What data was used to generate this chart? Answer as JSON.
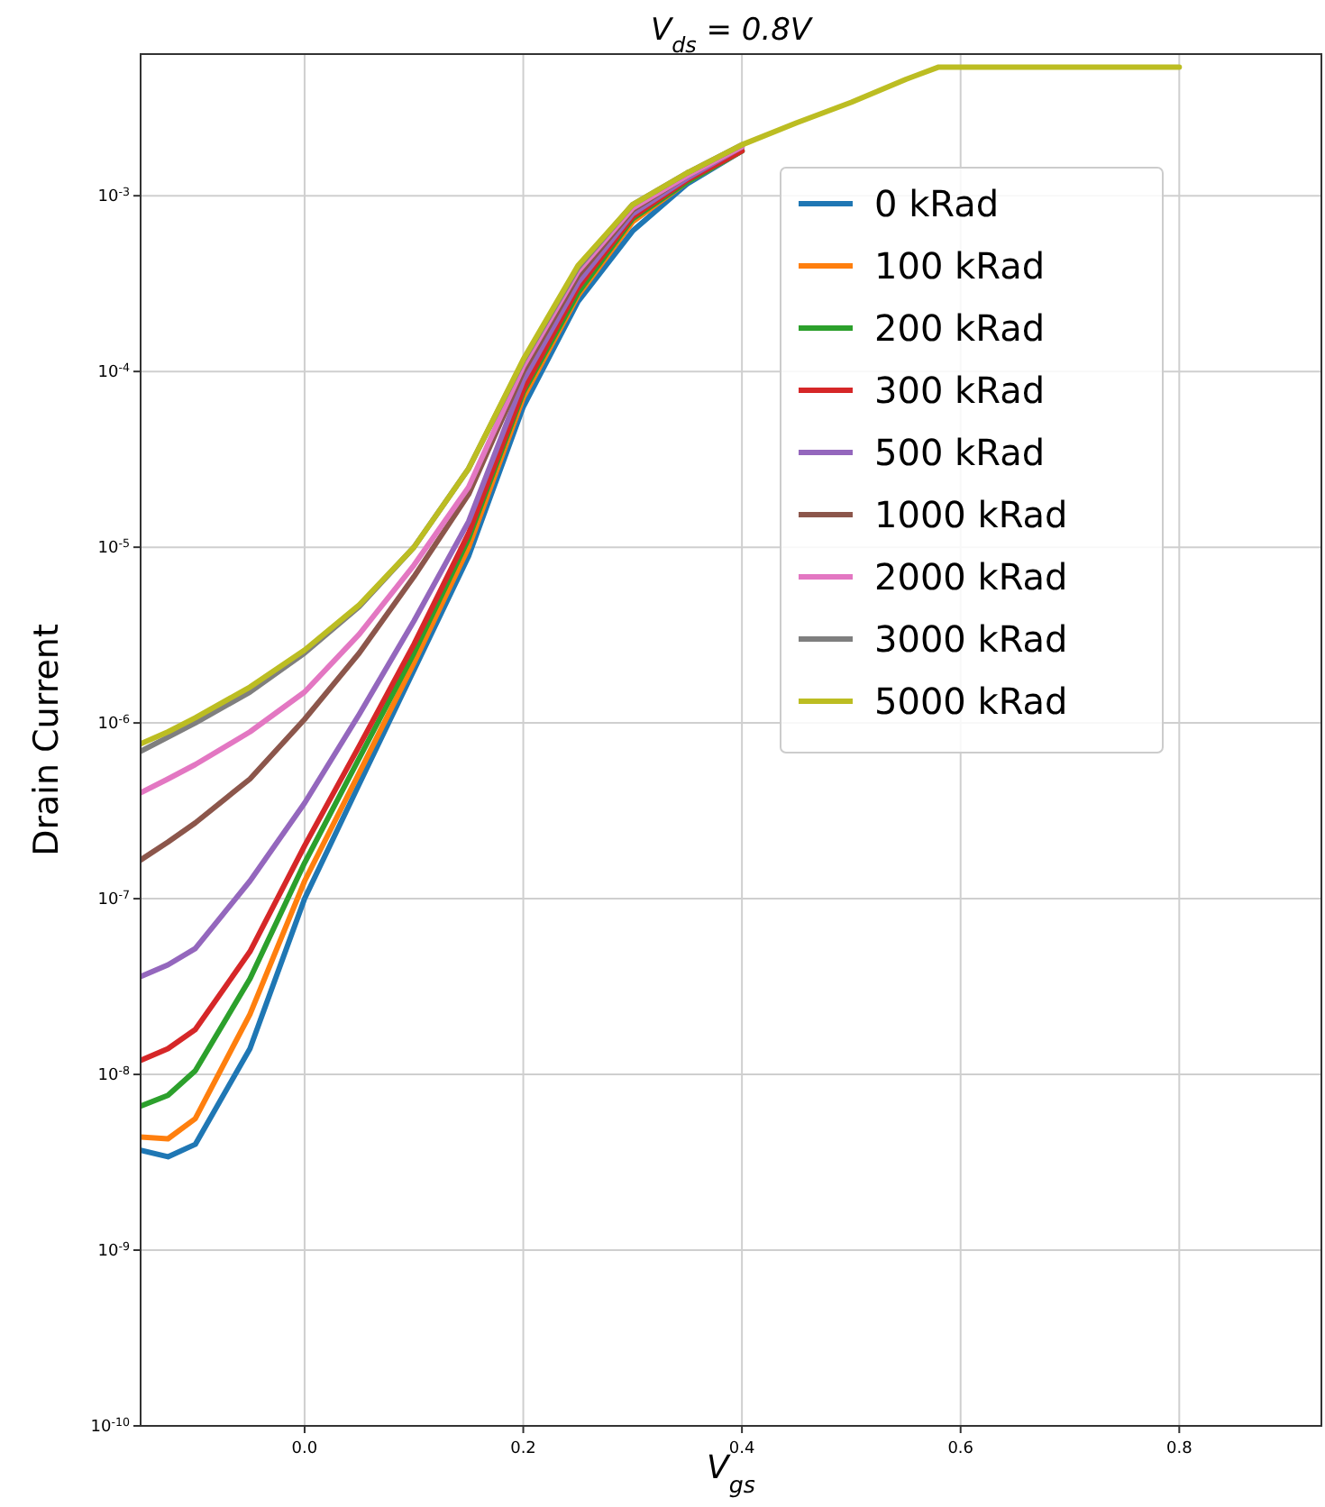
{
  "chart_data": {
    "type": "line",
    "title": "V$_{ds}$ = 0.8V",
    "xlabel": "V$_{gs}$",
    "ylabel": "Drain Current",
    "log": "y",
    "grid": true,
    "legend": "top right",
    "marker": "none",
    "line_style": "solid",
    "xlim": [
      -0.15,
      0.93
    ],
    "xticks": [
      {
        "value": 0,
        "label": "0.0"
      },
      0.2,
      0.4,
      0.6,
      0.8
    ],
    "ylim": [
      1e-10,
      0.0064
    ],
    "yticks": [
      {
        "value": 1e-10,
        "label": "10$^{-10}$"
      },
      {
        "value": 1e-09,
        "label": "10$^{-9}$"
      },
      {
        "value": 1e-08,
        "label": "10$^{-8}$"
      },
      {
        "value": 1e-07,
        "label": "10$^{-7}$"
      },
      {
        "value": 1e-06,
        "label": "10$^{-6}$"
      },
      {
        "value": 1e-05,
        "label": "10$^{-5}$"
      },
      {
        "value": 0.0001,
        "label": "10$^{-4}$"
      },
      {
        "value": 0.001,
        "label": "10$^{-3}$"
      }
    ],
    "x": [
      -0.15,
      -0.125,
      -0.1,
      -0.05,
      0,
      0.05,
      0.1,
      0.15,
      0.2,
      0.25,
      0.3,
      0.35,
      0.4,
      0.45,
      0.5,
      0.55,
      0.58,
      0.6,
      0.7,
      0.8
    ],
    "series": [
      {
        "name": "0 kRad",
        "color": "#1f77b4",
        "values": [
          3.7e-09,
          3.4e-09,
          4e-09,
          1.4e-08,
          1e-07,
          4.5e-07,
          2e-06,
          8.9e-06,
          6.3e-05,
          0.00025,
          0.00063,
          0.00117,
          0.0018,
          null,
          null,
          null,
          null,
          null,
          null,
          null
        ]
      },
      {
        "name": "100 kRad",
        "color": "#ff7f0e",
        "values": [
          4.4e-09,
          4.3e-09,
          5.6e-09,
          2.2e-08,
          1.26e-07,
          5.2e-07,
          2.2e-06,
          1e-05,
          7.1e-05,
          0.00027,
          0.00071,
          0.0012,
          0.0018,
          null,
          null,
          null,
          null,
          null,
          null,
          null
        ]
      },
      {
        "name": "200 kRad",
        "color": "#2ca02c",
        "values": [
          6.6e-09,
          7.6e-09,
          1.05e-08,
          3.5e-08,
          1.6e-07,
          6.3e-07,
          2.5e-06,
          1.12e-05,
          7.6e-05,
          0.00028,
          0.00074,
          0.0012,
          0.0018,
          null,
          null,
          null,
          null,
          null,
          null,
          null
        ]
      },
      {
        "name": "300 kRad",
        "color": "#d62728",
        "values": [
          1.2e-08,
          1.4e-08,
          1.8e-08,
          5e-08,
          2e-07,
          7.4e-07,
          2.8e-06,
          1.2e-05,
          7.9e-05,
          0.0003,
          0.00076,
          0.00123,
          0.0018,
          null,
          null,
          null,
          null,
          null,
          null,
          null
        ]
      },
      {
        "name": "500 kRad",
        "color": "#9467bd",
        "values": [
          3.6e-08,
          4.2e-08,
          5.2e-08,
          1.26e-07,
          3.5e-07,
          1.12e-06,
          3.8e-06,
          1.4e-05,
          8.9e-05,
          0.00032,
          0.00079,
          0.00126,
          0.0019,
          null,
          null,
          null,
          null,
          null,
          null,
          null
        ]
      },
      {
        "name": "1000 kRad",
        "color": "#8c564b",
        "values": [
          1.66e-07,
          2.1e-07,
          2.7e-07,
          4.8e-07,
          1.05e-06,
          2.5e-06,
          6.8e-06,
          2e-05,
          0.0001,
          0.00035,
          0.00083,
          0.0013,
          0.0019,
          null,
          null,
          null,
          null,
          null,
          null,
          null
        ]
      },
      {
        "name": "2000 kRad",
        "color": "#e377c2",
        "values": [
          4e-07,
          4.8e-07,
          5.8e-07,
          8.9e-07,
          1.5e-06,
          3.2e-06,
          7.9e-06,
          2.2e-05,
          0.000107,
          0.00037,
          0.00085,
          0.0013,
          0.0019,
          null,
          null,
          null,
          null,
          null,
          null,
          null
        ]
      },
      {
        "name": "3000 kRad",
        "color": "#7f7f7f",
        "values": [
          6.9e-07,
          8.3e-07,
          1e-06,
          1.5e-06,
          2.5e-06,
          4.6e-06,
          1e-05,
          2.8e-05,
          0.000115,
          0.00039,
          0.00089,
          0.00135,
          0.00195,
          null,
          null,
          null,
          null,
          null,
          null,
          null
        ]
      },
      {
        "name": "5000 kRad",
        "color": "#bcbd22",
        "values": [
          7.6e-07,
          8.9e-07,
          1.07e-06,
          1.6e-06,
          2.6e-06,
          4.7e-06,
          1e-05,
          2.8e-05,
          0.000117,
          0.0004,
          0.00089,
          0.00135,
          0.00195,
          0.0026,
          0.0034,
          0.0046,
          0.0054,
          0.0054,
          0.0054,
          0.0054
        ]
      }
    ]
  }
}
